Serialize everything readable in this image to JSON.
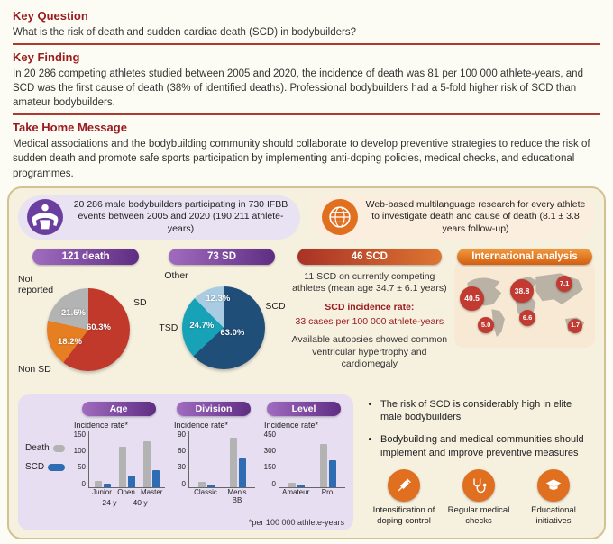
{
  "palette": {
    "maroon": "#9a1c20",
    "purple": "#6b3fa0",
    "orange": "#e0701f",
    "panel_cream": "#f6f0df",
    "lavender": "#e7def1"
  },
  "sections": {
    "key_question": {
      "title": "Key Question",
      "text": "What is the risk of death and sudden cardiac death (SCD) in bodybuilders?"
    },
    "key_finding": {
      "title": "Key Finding",
      "text": "In 20 286 competing athletes studied between 2005 and 2020, the incidence of death was 81 per 100 000 athlete-years, and SCD was the first cause of death (38% of identified deaths). Professional bodybuilders had a 5-fold higher risk of SCD than amateur bodybuilders."
    },
    "take_home": {
      "title": "Take Home Message",
      "text": "Medical associations and the bodybuilding community should collaborate to develop preventive strategies to reduce the risk of sudden death and promote safe sports participation by implementing anti-doping policies, medical checks, and educational programmes."
    }
  },
  "study_badge": {
    "text": "20 286 male bodybuilders participating in 730 IFBB events between 2005 and 2020 (190 211 athlete-years)"
  },
  "method_badge": {
    "text": "Web-based multilanguage research for every athlete to investigate death and cause of death (8.1 ± 3.8 years follow-up)"
  },
  "scd_panel": {
    "title": "46 SCD",
    "line1": "11 SCD on currently competing athletes (mean age 34.7 ± 6.1 years)",
    "line2": "SCD incidence rate:",
    "line3": "33 cases per 100 000 athlete-years",
    "line4": "Available autopsies showed common ventricular hypertrophy and cardiomegaly"
  },
  "map_panel": {
    "title": "International analysis",
    "values": [
      "40.5",
      "38.8",
      "7.1",
      "5.0",
      "6.6",
      "1.7"
    ]
  },
  "charts_panel": {
    "legend": [
      {
        "label": "Death",
        "color": "#b3b3b3"
      },
      {
        "label": "SCD",
        "color": "#2e6db4"
      }
    ],
    "age_markers": [
      "24 y",
      "40 y"
    ],
    "footnote": "*per 100 000 athlete-years"
  },
  "conclusions": {
    "bullets": [
      "The risk of SCD is considerably high in elite male bodybuilders",
      "Bodybuilding and medical communities should implement and improve preventive measures"
    ],
    "actions": [
      {
        "label": "Intensification of doping control"
      },
      {
        "label": "Regular medical checks"
      },
      {
        "label": "Educational initiatives"
      }
    ]
  },
  "chart_data": [
    {
      "type": "pie",
      "title": "121 death",
      "slices": [
        {
          "label": "SD",
          "value": 60.3,
          "pct": "60.3%",
          "color": "#c0392b"
        },
        {
          "label": "Non SD",
          "value": 18.2,
          "pct": "18.2%",
          "color": "#e67e22"
        },
        {
          "label": "Not reported",
          "value": 21.5,
          "pct": "21.5%",
          "color": "#b3b3b3"
        }
      ]
    },
    {
      "type": "pie",
      "title": "73 SD",
      "slices": [
        {
          "label": "SCD",
          "value": 63.0,
          "pct": "63.0%",
          "color": "#1f4e79"
        },
        {
          "label": "TSD",
          "value": 24.7,
          "pct": "24.7%",
          "color": "#17a2b8"
        },
        {
          "label": "Other",
          "value": 12.3,
          "pct": "12.3%",
          "color": "#a9cce3"
        }
      ]
    },
    {
      "type": "bar",
      "title": "Age",
      "ylabel": "Incidence rate*",
      "ylim": [
        0,
        150
      ],
      "yticks": [
        0,
        50,
        100,
        150
      ],
      "categories": [
        "Junior",
        "Open",
        "Master"
      ],
      "series": [
        {
          "name": "Death",
          "color": "#b3b3b3",
          "values": [
            15,
            105,
            120
          ]
        },
        {
          "name": "SCD",
          "color": "#2e6db4",
          "values": [
            8,
            30,
            45
          ]
        }
      ]
    },
    {
      "type": "bar",
      "title": "Division",
      "ylabel": "Incidence rate*",
      "ylim": [
        0,
        90
      ],
      "yticks": [
        0,
        30,
        60,
        90
      ],
      "categories": [
        "Classic",
        "Men's BB"
      ],
      "series": [
        {
          "name": "Death",
          "color": "#b3b3b3",
          "values": [
            8,
            78
          ]
        },
        {
          "name": "SCD",
          "color": "#2e6db4",
          "values": [
            4,
            45
          ]
        }
      ]
    },
    {
      "type": "bar",
      "title": "Level",
      "ylabel": "Incidence rate*",
      "ylim": [
        0,
        450
      ],
      "yticks": [
        0,
        150,
        300,
        450
      ],
      "categories": [
        "Amateur",
        "Pro"
      ],
      "series": [
        {
          "name": "Death",
          "color": "#b3b3b3",
          "values": [
            30,
            340
          ]
        },
        {
          "name": "SCD",
          "color": "#2e6db4",
          "values": [
            18,
            210
          ]
        }
      ]
    }
  ]
}
